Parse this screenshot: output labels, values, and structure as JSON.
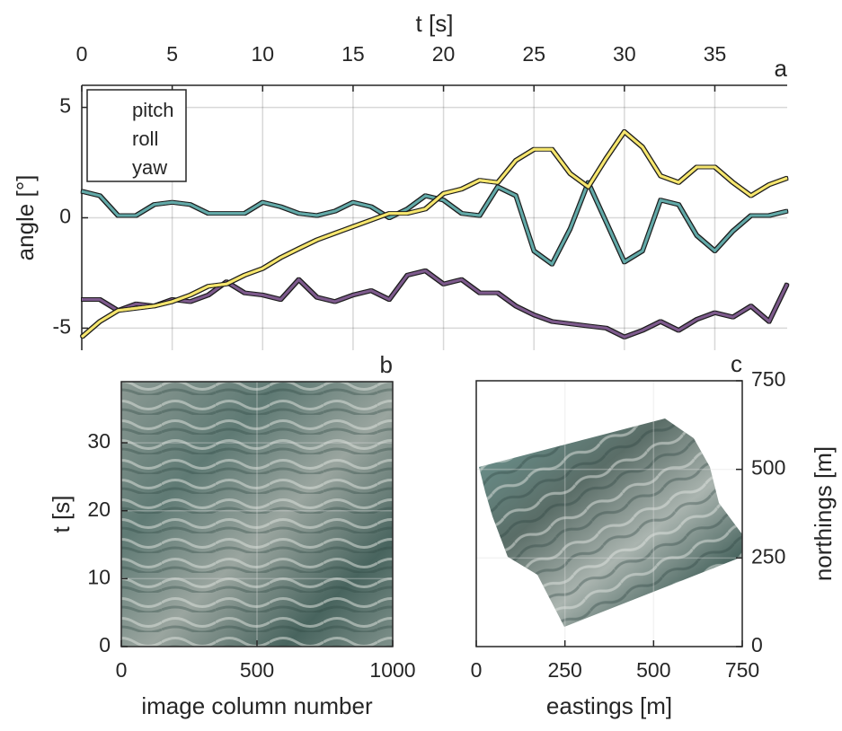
{
  "chart_data": [
    {
      "type": "line",
      "panel_label": "a",
      "xlabel": "t [s]",
      "ylabel": "angle [°]",
      "xaxis_position": "top",
      "yaxis_position": "left",
      "box": false,
      "grid": true,
      "legend": "upper left",
      "xlim": [
        0,
        39
      ],
      "ylim": [
        -6,
        6
      ],
      "xticks": [
        0,
        5,
        10,
        15,
        20,
        25,
        30,
        35
      ],
      "yticks": [
        -5,
        0,
        5
      ],
      "x": [
        0,
        1,
        2,
        3,
        4,
        5,
        6,
        7,
        8,
        9,
        10,
        11,
        12,
        13,
        14,
        15,
        16,
        17,
        18,
        19,
        20,
        21,
        22,
        23,
        24,
        25,
        26,
        27,
        28,
        29,
        30,
        31,
        32,
        33,
        34,
        35,
        36,
        37,
        38,
        39
      ],
      "series": [
        {
          "name": "pitch",
          "color": "#7d5a8c",
          "values": [
            -3.7,
            -3.7,
            -4.2,
            -3.9,
            -4.0,
            -3.7,
            -3.8,
            -3.5,
            -2.9,
            -3.4,
            -3.5,
            -3.7,
            -2.8,
            -3.6,
            -3.8,
            -3.5,
            -3.3,
            -3.7,
            -2.6,
            -2.4,
            -3.0,
            -2.8,
            -3.4,
            -3.4,
            -4.0,
            -4.4,
            -4.7,
            -4.8,
            -4.9,
            -5.0,
            -5.4,
            -5.1,
            -4.7,
            -5.1,
            -4.6,
            -4.3,
            -4.5,
            -4.0,
            -4.7,
            -3.0
          ]
        },
        {
          "name": "roll",
          "color": "#62a9a8",
          "values": [
            1.2,
            1.0,
            0.1,
            0.1,
            0.6,
            0.7,
            0.6,
            0.2,
            0.2,
            0.2,
            0.7,
            0.5,
            0.2,
            0.1,
            0.3,
            0.7,
            0.5,
            0.0,
            0.4,
            1.0,
            0.8,
            0.2,
            0.1,
            1.4,
            1.0,
            -1.5,
            -2.1,
            -0.5,
            1.6,
            -0.2,
            -2.0,
            -1.5,
            0.8,
            0.6,
            -0.8,
            -1.5,
            -0.6,
            0.1,
            0.1,
            0.3
          ]
        },
        {
          "name": "yaw",
          "color": "#f6e66e",
          "values": [
            -5.4,
            -4.7,
            -4.2,
            -4.1,
            -4.0,
            -3.8,
            -3.5,
            -3.1,
            -3.0,
            -2.6,
            -2.3,
            -1.8,
            -1.4,
            -1.0,
            -0.7,
            -0.4,
            -0.1,
            0.2,
            0.2,
            0.4,
            1.1,
            1.3,
            1.7,
            1.6,
            2.6,
            3.1,
            3.1,
            2.0,
            1.4,
            2.7,
            3.9,
            3.2,
            1.9,
            1.6,
            2.3,
            2.3,
            1.6,
            1.0,
            1.5,
            1.8
          ]
        }
      ]
    },
    {
      "type": "image",
      "panel_label": "b",
      "xlabel": "image column number",
      "ylabel": "t [s]",
      "xaxis_position": "bottom",
      "yaxis_position": "left",
      "box": true,
      "grid": true,
      "xlim": [
        0,
        1000
      ],
      "ylim": [
        0,
        39
      ],
      "xticks": [
        0,
        500,
        1000
      ],
      "yticks": [
        0,
        10,
        20,
        30
      ]
    },
    {
      "type": "image",
      "panel_label": "c",
      "xlabel": "eastings [m]",
      "ylabel": "northings [m]",
      "xaxis_position": "bottom",
      "yaxis_position": "right",
      "box": true,
      "grid": true,
      "xlim": [
        0,
        750
      ],
      "ylim": [
        0,
        750
      ],
      "xticks": [
        0,
        250,
        500,
        750
      ],
      "yticks": [
        0,
        250,
        500,
        750
      ]
    }
  ]
}
